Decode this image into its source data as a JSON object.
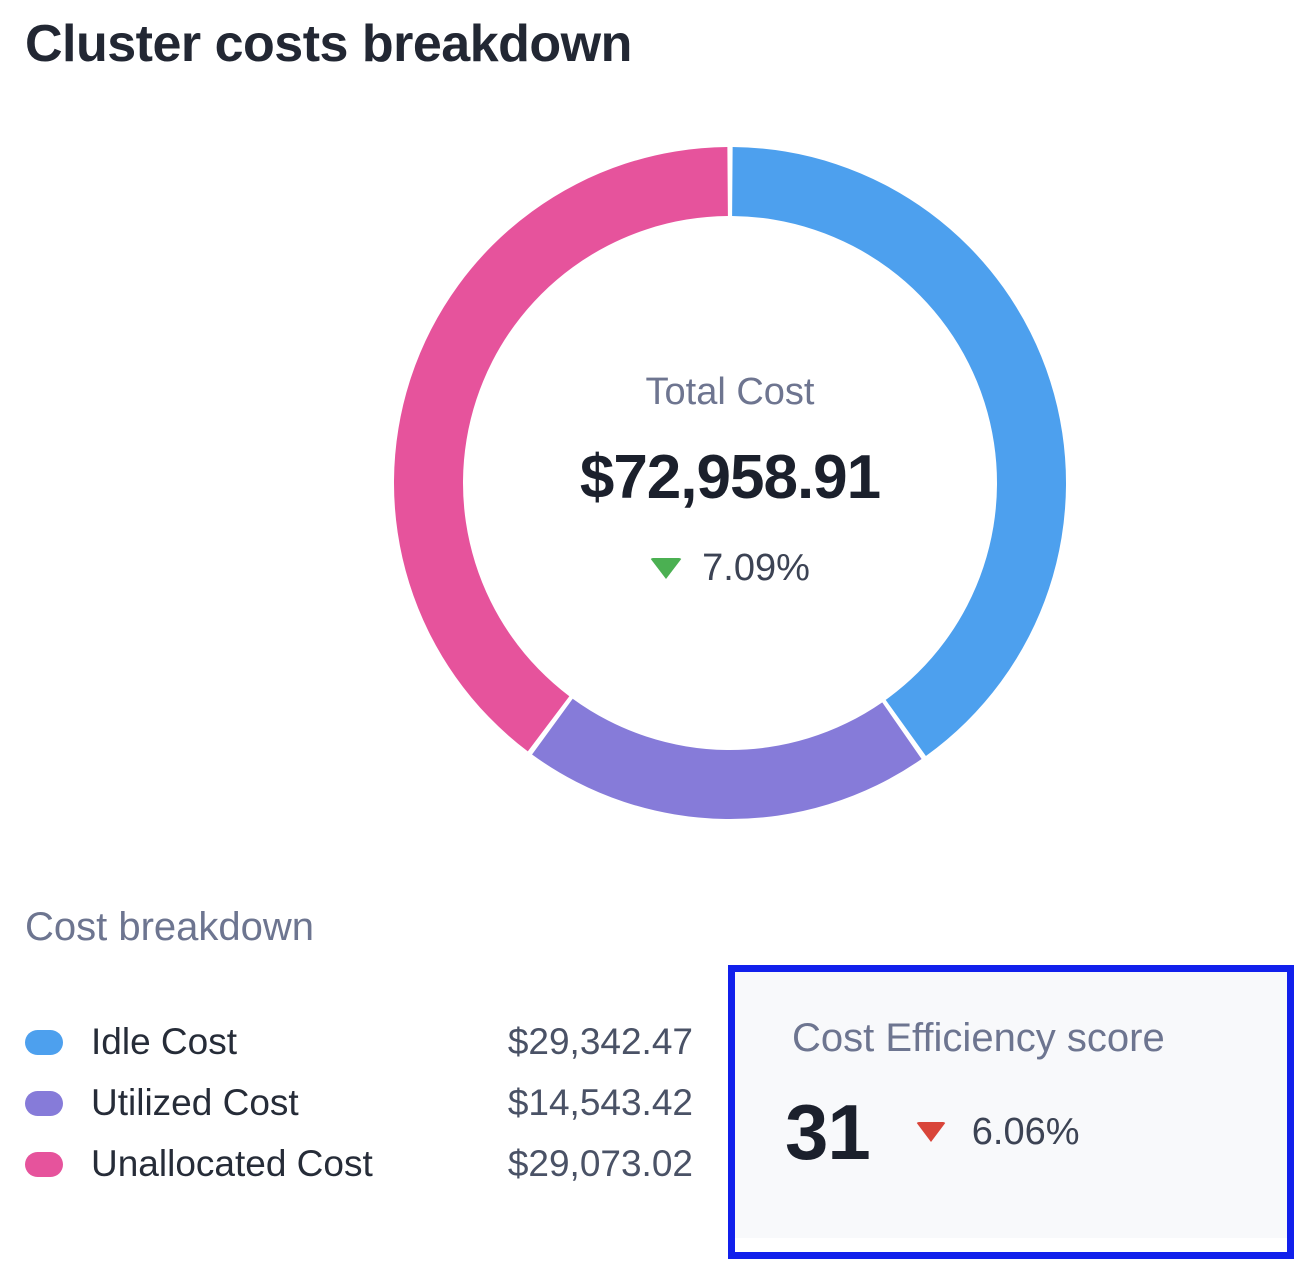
{
  "page": {
    "title": "Cluster costs breakdown"
  },
  "chart_data": {
    "type": "pie",
    "donut": true,
    "title": "Cluster costs breakdown",
    "direction": "clockwise",
    "start_angle_deg": 0,
    "total": 72958.91,
    "center": {
      "label": "Total Cost",
      "value": "$72,958.91",
      "delta": "7.09%",
      "delta_direction": "down",
      "delta_color": "#4bb052"
    },
    "segments": [
      {
        "label": "Idle Cost",
        "value": 29342.47,
        "display": "$29,342.47",
        "color": "#4da0ee"
      },
      {
        "label": "Utilized Cost",
        "value": 14543.42,
        "display": "$14,543.42",
        "color": "#867bd9"
      },
      {
        "label": "Unallocated Cost",
        "value": 29073.02,
        "display": "$29,073.02",
        "color": "#e6539c"
      }
    ],
    "legend_position": "bottom-left"
  },
  "breakdown": {
    "heading": "Cost breakdown"
  },
  "efficiency": {
    "heading": "Cost Efficiency score",
    "score": "31",
    "delta": "6.06%",
    "delta_direction": "down",
    "delta_color": "#d9453a",
    "highlight_border_color": "#1120ec",
    "card_background": "#f8f9fb"
  }
}
